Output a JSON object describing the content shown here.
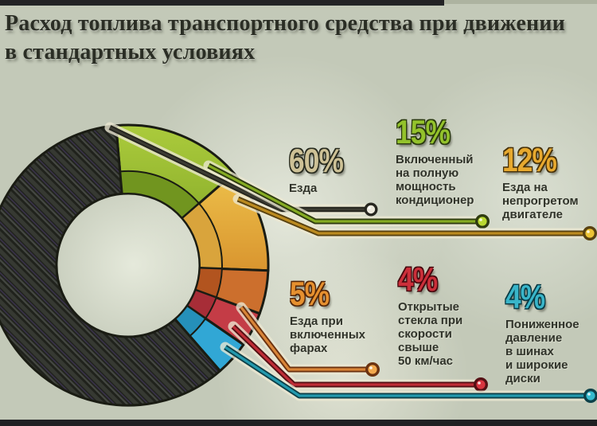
{
  "title": "Расход топлива транспортного средства при движении\nв стандартных условиях",
  "palette": {
    "background": "#c3c9b8",
    "title_text": "#2b2e25",
    "label_text": "#30332a",
    "edge_bar": "#17171a",
    "line_halo": "#ece8d2",
    "segment_outline": "#1a1c13"
  },
  "chart_data": {
    "type": "pie",
    "donut": true,
    "title": "Расход топлива транспортного средства при движении в стандартных условиях",
    "legend_position": "right",
    "categories": [
      "Езда",
      "Включенный на полную мощность кондиционер",
      "Езда на непрогретом двигателе",
      "Езда при включенных фарах",
      "Открытые стекла при скорости свыше 50 км/час",
      "Пониженное давление в шинах и широкие диски"
    ],
    "values": [
      60,
      15,
      12,
      5,
      4,
      4
    ],
    "segments": [
      {
        "value": 60,
        "pct_label": "60%",
        "label": "Езда",
        "color": "#23251d",
        "pattern": "hatch",
        "number_color": "#cdc196",
        "number_stroke": "#272a1e",
        "line_edge": "#26261f",
        "line_core": "#3c3c33",
        "dot_fill": "#ece9dc"
      },
      {
        "value": 15,
        "pct_label": "15%",
        "label": "Включенный\nна полную\nмощность\nкондиционер",
        "color": "#abcb3c",
        "color2": "#8db02c",
        "inner_color": "#71951f",
        "number_color": "#93c22b",
        "number_stroke": "#2a3a0e",
        "line_edge": "#2e3b10",
        "line_core": "#85ab22",
        "dot_fill": "#b9d832"
      },
      {
        "value": 12,
        "pct_label": "12%",
        "label": "Езда на\nнепрогретом\nдвигателе",
        "color": "#edc04a",
        "color2": "#d9952f",
        "inner_color": "#d9a43c",
        "number_color": "#e7a92f",
        "number_stroke": "#46310a",
        "line_edge": "#584110",
        "line_core": "#bb8a1f",
        "dot_fill": "#ecc335"
      },
      {
        "value": 5,
        "pct_label": "5%",
        "label": "Езда при\nвключенных\nфарах",
        "color": "#cc6f2d",
        "inner_color": "#b2541f",
        "number_color": "#e6902f",
        "number_stroke": "#52260a",
        "line_edge": "#6b3210",
        "line_core": "#d98538",
        "dot_fill": "#f2a94e"
      },
      {
        "value": 4,
        "pct_label": "4%",
        "label": "Открытые\nстекла при\nскорости\nсвыше\n50 км/час",
        "color": "#c43c46",
        "inner_color": "#a72d37",
        "number_color": "#cb2f3a",
        "number_stroke": "#45080d",
        "line_edge": "#551014",
        "line_core": "#bf2d36",
        "dot_fill": "#d8343f"
      },
      {
        "value": 4,
        "pct_label": "4%",
        "label": "Пониженное\nдавление\nв шинах\nи широкие\nдиски",
        "color": "#31a7d5",
        "inner_color": "#2590ba",
        "number_color": "#39b5c9",
        "number_stroke": "#093a44",
        "line_edge": "#0d4049",
        "line_core": "#2399ad",
        "dot_fill": "#35bacd"
      }
    ]
  }
}
